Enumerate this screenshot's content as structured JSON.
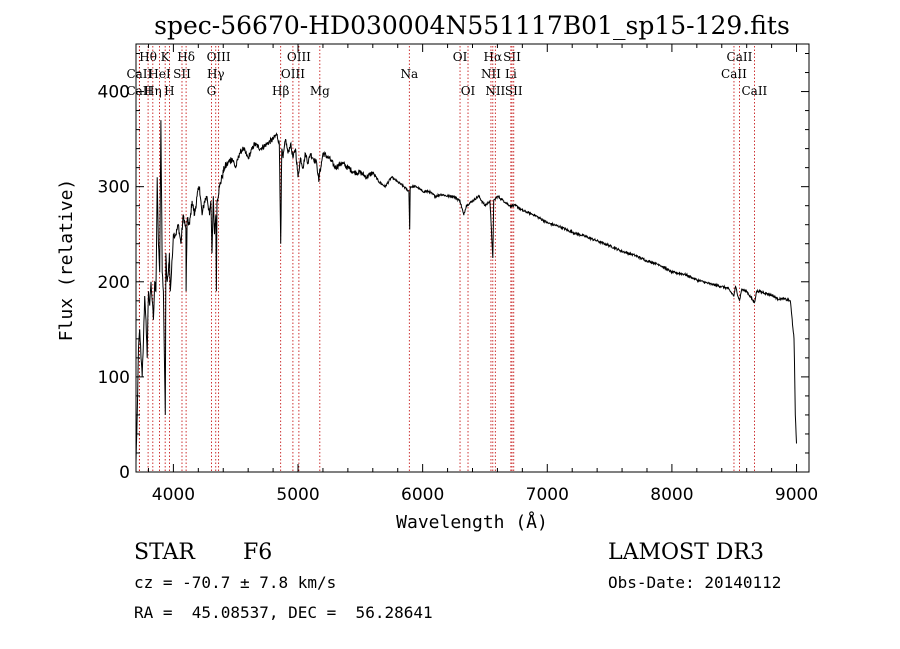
{
  "chart_data": {
    "type": "line",
    "title": "spec-56670-HD030004N551117B01_sp15-129.fits",
    "xlabel": "Wavelength (Å)",
    "ylabel": "Flux (relative)",
    "xlim": [
      3700,
      9100
    ],
    "ylim": [
      0,
      450
    ],
    "xticks": [
      4000,
      5000,
      6000,
      7000,
      8000,
      9000
    ],
    "yticks": [
      0,
      100,
      200,
      300,
      400
    ],
    "series": [
      {
        "name": "flux",
        "x": [
          3700,
          3710,
          3720,
          3730,
          3740,
          3750,
          3760,
          3770,
          3780,
          3790,
          3800,
          3810,
          3820,
          3830,
          3840,
          3850,
          3860,
          3870,
          3880,
          3890,
          3900,
          3910,
          3920,
          3930,
          3935,
          3940,
          3950,
          3960,
          3968,
          3975,
          3985,
          4000,
          4020,
          4040,
          4060,
          4080,
          4100,
          4102,
          4110,
          4130,
          4150,
          4170,
          4190,
          4210,
          4230,
          4250,
          4270,
          4290,
          4300,
          4310,
          4320,
          4330,
          4340,
          4345,
          4350,
          4370,
          4390,
          4410,
          4440,
          4470,
          4500,
          4530,
          4560,
          4600,
          4650,
          4700,
          4750,
          4800,
          4830,
          4850,
          4861,
          4870,
          4880,
          4900,
          4920,
          4940,
          4960,
          4980,
          5000,
          5020,
          5040,
          5060,
          5080,
          5100,
          5120,
          5150,
          5167,
          5172,
          5183,
          5200,
          5250,
          5300,
          5350,
          5400,
          5450,
          5500,
          5550,
          5600,
          5650,
          5700,
          5750,
          5800,
          5850,
          5890,
          5896,
          5900,
          5950,
          6000,
          6050,
          6100,
          6150,
          6200,
          6250,
          6300,
          6330,
          6350,
          6400,
          6450,
          6500,
          6540,
          6563,
          6570,
          6600,
          6650,
          6700,
          6750,
          6800,
          6900,
          7000,
          7100,
          7200,
          7300,
          7400,
          7500,
          7600,
          7700,
          7800,
          7900,
          8000,
          8100,
          8200,
          8300,
          8400,
          8450,
          8498,
          8510,
          8542,
          8560,
          8600,
          8662,
          8680,
          8700,
          8750,
          8800,
          8850,
          8900,
          8950,
          8980,
          8990,
          9000
        ],
        "y": [
          10,
          60,
          130,
          150,
          120,
          100,
          140,
          185,
          160,
          120,
          190,
          175,
          200,
          180,
          160,
          200,
          190,
          310,
          240,
          210,
          370,
          210,
          190,
          100,
          60,
          230,
          200,
          210,
          230,
          190,
          210,
          250,
          250,
          260,
          240,
          270,
          255,
          190,
          265,
          260,
          285,
          270,
          290,
          300,
          270,
          285,
          290,
          270,
          285,
          230,
          290,
          250,
          270,
          190,
          285,
          300,
          310,
          320,
          325,
          330,
          320,
          335,
          340,
          330,
          345,
          340,
          345,
          350,
          355,
          345,
          240,
          340,
          330,
          350,
          335,
          345,
          330,
          340,
          310,
          330,
          320,
          335,
          325,
          335,
          330,
          325,
          305,
          315,
          320,
          335,
          330,
          320,
          325,
          320,
          315,
          315,
          310,
          315,
          305,
          300,
          310,
          305,
          300,
          295,
          255,
          300,
          300,
          295,
          295,
          290,
          292,
          290,
          290,
          285,
          270,
          280,
          285,
          290,
          280,
          285,
          225,
          285,
          290,
          285,
          280,
          280,
          275,
          270,
          262,
          258,
          252,
          248,
          243,
          238,
          232,
          228,
          222,
          218,
          210,
          208,
          202,
          198,
          195,
          193,
          185,
          195,
          180,
          192,
          190,
          178,
          190,
          190,
          188,
          186,
          182,
          182,
          180,
          140,
          60,
          30
        ]
      }
    ],
    "spectral_lines": [
      {
        "label": "Hθ",
        "x": 3797,
        "row": 1
      },
      {
        "label": "CaII",
        "x": 3727,
        "row": 2
      },
      {
        "label": "CaII",
        "x": 3727,
        "row": 3
      },
      {
        "label": "Hη",
        "x": 3835,
        "row": 3
      },
      {
        "label": "K",
        "x": 3934,
        "row": 1
      },
      {
        "label": "HeI",
        "x": 3889,
        "row": 2
      },
      {
        "label": "H",
        "x": 3968,
        "row": 3
      },
      {
        "label": "Hδ",
        "x": 4102,
        "row": 1
      },
      {
        "label": "SII",
        "x": 4069,
        "row": 2
      },
      {
        "label": "OIII",
        "x": 4363,
        "row": 1
      },
      {
        "label": "Hγ",
        "x": 4340,
        "row": 2
      },
      {
        "label": "G",
        "x": 4305,
        "row": 3
      },
      {
        "label": "Hβ",
        "x": 4861,
        "row": 3
      },
      {
        "label": "OIII",
        "x": 5007,
        "row": 1
      },
      {
        "label": "OIII",
        "x": 4959,
        "row": 2
      },
      {
        "label": "Mg",
        "x": 5175,
        "row": 3
      },
      {
        "label": "Na",
        "x": 5893,
        "row": 2
      },
      {
        "label": "OI",
        "x": 6300,
        "row": 1
      },
      {
        "label": "OI",
        "x": 6364,
        "row": 3
      },
      {
        "label": "Hα",
        "x": 6563,
        "row": 1
      },
      {
        "label": "NII",
        "x": 6548,
        "row": 2
      },
      {
        "label": "NII",
        "x": 6583,
        "row": 3
      },
      {
        "label": "SII",
        "x": 6717,
        "row": 1
      },
      {
        "label": "Li",
        "x": 6708,
        "row": 2
      },
      {
        "label": "SII",
        "x": 6731,
        "row": 3
      },
      {
        "label": "CaII",
        "x": 8542,
        "row": 1
      },
      {
        "label": "CaII",
        "x": 8498,
        "row": 2
      },
      {
        "label": "CaII",
        "x": 8662,
        "row": 3
      }
    ]
  },
  "info": {
    "object_class": "STAR",
    "subclass": "F6",
    "survey": "LAMOST DR3",
    "cz": "cz = -70.7 ± 7.8 km/s",
    "obs_date": "Obs-Date: 20140112",
    "coords": "RA =  45.08537, DEC =  56.28641"
  }
}
